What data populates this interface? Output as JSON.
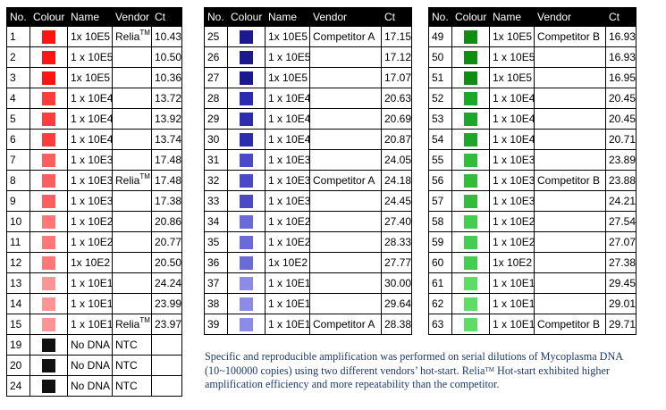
{
  "headers": {
    "no": "No.",
    "colour": "Colour",
    "name": "Name",
    "vendor": "Vendor",
    "ct": "Ct"
  },
  "tables": [
    {
      "rows": [
        {
          "no": "1",
          "color": "#ff1414",
          "name": "1x 10E5",
          "vendor": "Relia",
          "sup": "TM",
          "ct": "10.43"
        },
        {
          "no": "2",
          "color": "#ff1414",
          "name": "1 x 10E5",
          "vendor": "",
          "sup": "",
          "ct": "10.50"
        },
        {
          "no": "3",
          "color": "#ff1414",
          "name": "1x 10E5",
          "vendor": "",
          "sup": "",
          "ct": "10.36"
        },
        {
          "no": "4",
          "color": "#ff3c3c",
          "name": "1 x 10E4",
          "vendor": "",
          "sup": "",
          "ct": "13.72"
        },
        {
          "no": "5",
          "color": "#ff3c3c",
          "name": "1 x 10E4",
          "vendor": "",
          "sup": "",
          "ct": "13.92"
        },
        {
          "no": "6",
          "color": "#ff3c3c",
          "name": "1 x 10E4",
          "vendor": "",
          "sup": "",
          "ct": "13.74"
        },
        {
          "no": "7",
          "color": "#ff5e5e",
          "name": "1 x 10E3",
          "vendor": "",
          "sup": "",
          "ct": "17.48"
        },
        {
          "no": "8",
          "color": "#ff5e5e",
          "name": "1 x 10E3",
          "vendor": "Relia",
          "sup": "TM",
          "ct": "17.48"
        },
        {
          "no": "9",
          "color": "#ff5e5e",
          "name": "1 x 10E3",
          "vendor": "",
          "sup": "",
          "ct": "17.38"
        },
        {
          "no": "10",
          "color": "#ff7777",
          "name": "1 x 10E2",
          "vendor": "",
          "sup": "",
          "ct": "20.86"
        },
        {
          "no": "11",
          "color": "#ff7777",
          "name": "1 x 10E2",
          "vendor": "",
          "sup": "",
          "ct": "20.77"
        },
        {
          "no": "12",
          "color": "#ff7777",
          "name": "1x 10E2",
          "vendor": "",
          "sup": "",
          "ct": "20.50"
        },
        {
          "no": "13",
          "color": "#ff9494",
          "name": "1 x 10E1",
          "vendor": "",
          "sup": "",
          "ct": "24.24"
        },
        {
          "no": "14",
          "color": "#ff9494",
          "name": "1 x 10E1",
          "vendor": "",
          "sup": "",
          "ct": "23.99"
        },
        {
          "no": "15",
          "color": "#ff9494",
          "name": "1 x 10E1",
          "vendor": "Relia",
          "sup": "TM",
          "ct": "23.97"
        },
        {
          "no": "19",
          "color": "#111111",
          "name": "No DNA",
          "vendor": "NTC",
          "sup": "",
          "ct": ""
        },
        {
          "no": "20",
          "color": "#111111",
          "name": "No DNA",
          "vendor": "NTC",
          "sup": "",
          "ct": ""
        },
        {
          "no": "24",
          "color": "#111111",
          "name": "No DNA",
          "vendor": "NTC",
          "sup": "",
          "ct": ""
        }
      ]
    },
    {
      "rows": [
        {
          "no": "25",
          "color": "#1a1a8e",
          "name": "1x 10E5",
          "vendor": "Competitor A",
          "sup": "",
          "ct": "17.15"
        },
        {
          "no": "26",
          "color": "#1a1a8e",
          "name": "1 x 10E5",
          "vendor": "",
          "sup": "",
          "ct": "17.12"
        },
        {
          "no": "27",
          "color": "#1a1a8e",
          "name": "1x 10E5",
          "vendor": "",
          "sup": "",
          "ct": "17.07"
        },
        {
          "no": "28",
          "color": "#2c2cae",
          "name": "1 x 10E4",
          "vendor": "",
          "sup": "",
          "ct": "20.63"
        },
        {
          "no": "29",
          "color": "#2c2cae",
          "name": "1 x 10E4",
          "vendor": "",
          "sup": "",
          "ct": "20.69"
        },
        {
          "no": "30",
          "color": "#2c2cae",
          "name": "1 x 10E4",
          "vendor": "",
          "sup": "",
          "ct": "20.87"
        },
        {
          "no": "31",
          "color": "#4a4ac8",
          "name": "1 x 10E3",
          "vendor": "",
          "sup": "",
          "ct": "24.05"
        },
        {
          "no": "32",
          "color": "#4a4ac8",
          "name": "1 x 10E3",
          "vendor": "Competitor A",
          "sup": "",
          "ct": "24.18"
        },
        {
          "no": "33",
          "color": "#4a4ac8",
          "name": "1 x 10E3",
          "vendor": "",
          "sup": "",
          "ct": "24.45"
        },
        {
          "no": "34",
          "color": "#6b6bd8",
          "name": "1 x 10E2",
          "vendor": "",
          "sup": "",
          "ct": "27.40"
        },
        {
          "no": "35",
          "color": "#6b6bd8",
          "name": "1 x 10E2",
          "vendor": "",
          "sup": "",
          "ct": "28.33"
        },
        {
          "no": "36",
          "color": "#6b6bd8",
          "name": "1x 10E2",
          "vendor": "",
          "sup": "",
          "ct": "27.77"
        },
        {
          "no": "37",
          "color": "#8c8ce6",
          "name": "1 x 10E1",
          "vendor": "",
          "sup": "",
          "ct": "30.00"
        },
        {
          "no": "38",
          "color": "#8c8ce6",
          "name": "1 x 10E1",
          "vendor": "",
          "sup": "",
          "ct": "29.64"
        },
        {
          "no": "39",
          "color": "#8c8ce6",
          "name": "1 x 10E1",
          "vendor": "Competitor A",
          "sup": "",
          "ct": "28.38"
        }
      ]
    },
    {
      "rows": [
        {
          "no": "49",
          "color": "#0e8c14",
          "name": "1x 10E5",
          "vendor": "Competitor B",
          "sup": "",
          "ct": "16.93"
        },
        {
          "no": "50",
          "color": "#0e8c14",
          "name": "1 x 10E5",
          "vendor": "",
          "sup": "",
          "ct": "16.93"
        },
        {
          "no": "51",
          "color": "#0e8c14",
          "name": "1x 10E5",
          "vendor": "",
          "sup": "",
          "ct": "16.95"
        },
        {
          "no": "52",
          "color": "#1ea62a",
          "name": "1 x 10E4",
          "vendor": "",
          "sup": "",
          "ct": "20.45"
        },
        {
          "no": "53",
          "color": "#1ea62a",
          "name": "1 x 10E4",
          "vendor": "",
          "sup": "",
          "ct": "20.45"
        },
        {
          "no": "54",
          "color": "#1ea62a",
          "name": "1 x 10E4",
          "vendor": "",
          "sup": "",
          "ct": "20.71"
        },
        {
          "no": "55",
          "color": "#33bb3c",
          "name": "1 x 10E3",
          "vendor": "",
          "sup": "",
          "ct": "23.89"
        },
        {
          "no": "56",
          "color": "#33bb3c",
          "name": "1 x 10E3",
          "vendor": "Competitor B",
          "sup": "",
          "ct": "23.88"
        },
        {
          "no": "57",
          "color": "#33bb3c",
          "name": "1 x 10E3",
          "vendor": "",
          "sup": "",
          "ct": "24.21"
        },
        {
          "no": "58",
          "color": "#46cc50",
          "name": "1 x 10E2",
          "vendor": "",
          "sup": "",
          "ct": "27.54"
        },
        {
          "no": "59",
          "color": "#46cc50",
          "name": "1 x 10E2",
          "vendor": "",
          "sup": "",
          "ct": "27.07"
        },
        {
          "no": "60",
          "color": "#46cc50",
          "name": "1x 10E2",
          "vendor": "",
          "sup": "",
          "ct": "27.38"
        },
        {
          "no": "61",
          "color": "#5edd66",
          "name": "1 x 10E1",
          "vendor": "",
          "sup": "",
          "ct": "29.45"
        },
        {
          "no": "62",
          "color": "#5edd66",
          "name": "1 x 10E1",
          "vendor": "",
          "sup": "",
          "ct": "29.01"
        },
        {
          "no": "63",
          "color": "#5edd66",
          "name": "1 x 10E1",
          "vendor": "Competitor B",
          "sup": "",
          "ct": "29.71"
        }
      ]
    }
  ],
  "caption": {
    "before": "Specific and reproducible amplification was performed on serial dilutions of Mycoplasma DNA (10~100000 copies) using two different vendors’ hot-start. Relia",
    "sup": "TM",
    "after": " Hot-start exhibited higher amplification efficiency and more repeatability than the competitor."
  }
}
